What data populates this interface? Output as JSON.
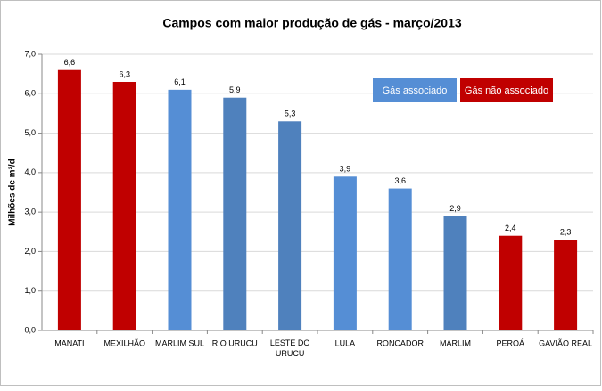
{
  "chart_data": {
    "type": "bar",
    "title": "Campos com maior produção de gás - março/2013",
    "y_label": "Milhões de m³/d",
    "categories": [
      "MANATI",
      "MEXILHÃO",
      "MARLIM SUL",
      "RIO URUCU",
      "LESTE DO URUCU",
      "LULA",
      "RONCADOR",
      "MARLIM",
      "PEROÁ",
      "GAVIÃO REAL"
    ],
    "values": [
      6.6,
      6.3,
      6.1,
      5.9,
      5.3,
      3.9,
      3.6,
      2.9,
      2.4,
      2.3
    ],
    "value_labels": [
      "6,6",
      "6,3",
      "6,1",
      "5,9",
      "5,3",
      "3,9",
      "3,6",
      "2,9",
      "2,4",
      "2,3"
    ],
    "colors": [
      "#c00000",
      "#c00000",
      "#558ed5",
      "#4f81bd",
      "#4f81bd",
      "#558ed5",
      "#558ed5",
      "#4f81bd",
      "#c00000",
      "#c00000"
    ],
    "legend": [
      {
        "name": "Gás associado",
        "color": "#558ed5"
      },
      {
        "name": "Gás não associado",
        "color": "#c00000"
      }
    ],
    "ylim": [
      0,
      7
    ],
    "yticks": [
      {
        "value": 0,
        "label": "0,0"
      },
      {
        "value": 1,
        "label": "1,0"
      },
      {
        "value": 2,
        "label": "2,0"
      },
      {
        "value": 3,
        "label": "3,0"
      },
      {
        "value": 4,
        "label": "4,0"
      },
      {
        "value": 5,
        "label": "5,0"
      },
      {
        "value": 6,
        "label": "6,0"
      },
      {
        "value": 7,
        "label": "7,0"
      }
    ]
  }
}
